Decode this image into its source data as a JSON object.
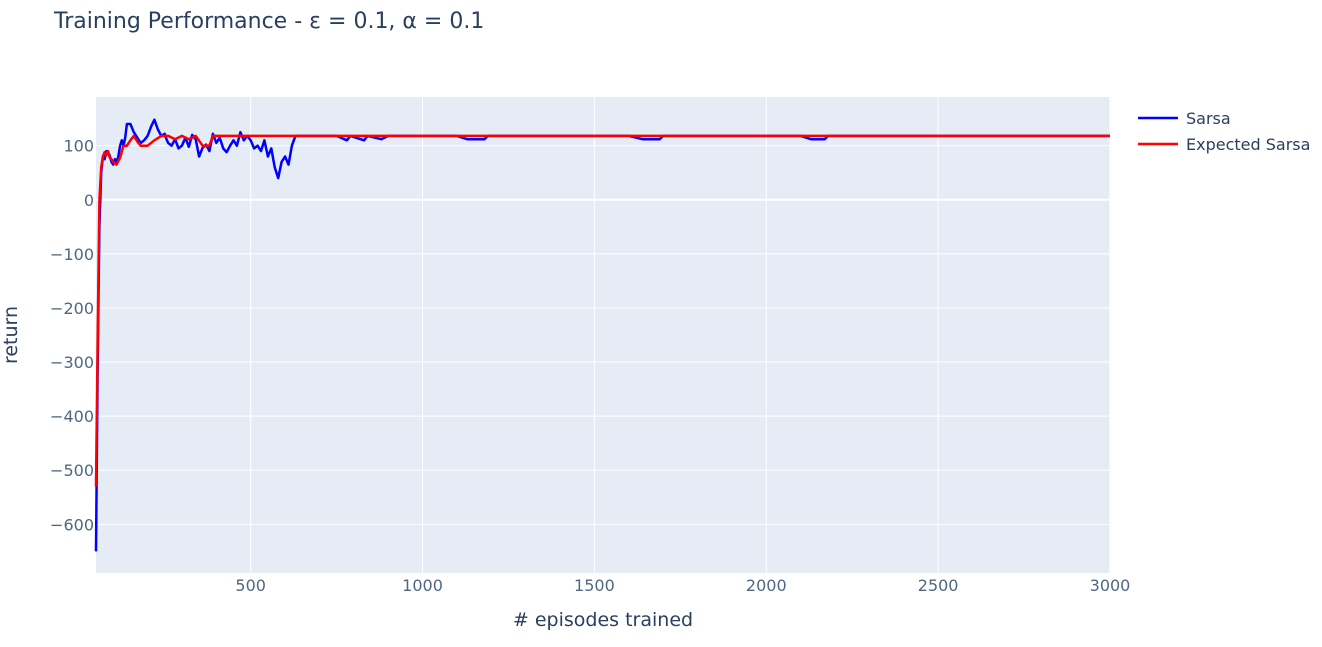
{
  "chart_data": {
    "type": "line",
    "title": "Training Performance - ε = 0.1, α = 0.1",
    "xlabel": "# episodes trained",
    "ylabel": "return",
    "xlim": [
      50,
      3000
    ],
    "ylim": [
      -690,
      190
    ],
    "x_ticks": [
      500,
      1000,
      1500,
      2000,
      2500,
      3000
    ],
    "x_tick_labels": [
      "500",
      "1000",
      "1500",
      "2000",
      "2500",
      "3000"
    ],
    "y_ticks": [
      100,
      0,
      -100,
      -200,
      -300,
      -400,
      -500,
      -600
    ],
    "y_tick_labels": [
      "100",
      "0",
      "−100",
      "−200",
      "−300",
      "−400",
      "−500",
      "−600"
    ],
    "grid": true,
    "plot_background": "#e5ecf6",
    "grid_color": "#ffffff",
    "legend_position": "top-right outside plot",
    "series": [
      {
        "name": "Sarsa",
        "color": "#0000ff",
        "x": [
          50,
          55,
          60,
          65,
          70,
          75,
          80,
          85,
          90,
          95,
          100,
          105,
          110,
          115,
          120,
          125,
          130,
          135,
          140,
          150,
          160,
          170,
          180,
          190,
          200,
          210,
          220,
          230,
          240,
          250,
          255,
          260,
          270,
          280,
          290,
          300,
          310,
          320,
          330,
          340,
          350,
          360,
          370,
          380,
          390,
          400,
          410,
          420,
          430,
          440,
          450,
          460,
          470,
          480,
          490,
          500,
          510,
          520,
          530,
          540,
          550,
          560,
          570,
          580,
          590,
          600,
          610,
          620,
          630,
          640,
          650,
          660,
          670,
          680,
          700,
          750,
          780,
          790,
          830,
          840,
          880,
          900,
          950,
          1000,
          1100,
          1130,
          1180,
          1190,
          1230,
          1240,
          1300,
          1500,
          1600,
          1640,
          1690,
          1700,
          1800,
          2000,
          2100,
          2130,
          2170,
          2180,
          2300,
          2500,
          2700,
          3000
        ],
        "y": [
          -650,
          -300,
          -50,
          50,
          80,
          75,
          90,
          88,
          82,
          70,
          65,
          75,
          70,
          80,
          100,
          110,
          100,
          115,
          140,
          140,
          125,
          115,
          105,
          110,
          118,
          135,
          148,
          130,
          118,
          122,
          112,
          105,
          100,
          112,
          95,
          100,
          115,
          98,
          120,
          112,
          80,
          96,
          102,
          90,
          122,
          105,
          115,
          95,
          88,
          100,
          110,
          100,
          125,
          110,
          118,
          110,
          95,
          100,
          90,
          110,
          80,
          95,
          60,
          40,
          70,
          80,
          65,
          100,
          118,
          118,
          118,
          118,
          118,
          118,
          118,
          118,
          110,
          118,
          110,
          118,
          112,
          118,
          118,
          118,
          118,
          112,
          112,
          118,
          118,
          118,
          118,
          118,
          118,
          112,
          112,
          118,
          118,
          118,
          118,
          112,
          112,
          118,
          118,
          118,
          118,
          118
        ]
      },
      {
        "name": "Expected Sarsa",
        "color": "#ff0000",
        "x": [
          50,
          55,
          60,
          65,
          70,
          75,
          80,
          85,
          90,
          95,
          100,
          110,
          120,
          130,
          140,
          150,
          160,
          170,
          180,
          190,
          200,
          220,
          240,
          260,
          280,
          300,
          320,
          340,
          360,
          380,
          390,
          400,
          420,
          450,
          500,
          600,
          700,
          800,
          900,
          1000,
          1500,
          2000,
          2500,
          3000
        ],
        "y": [
          -530,
          -250,
          0,
          60,
          80,
          88,
          82,
          90,
          78,
          75,
          70,
          65,
          78,
          100,
          100,
          110,
          118,
          108,
          100,
          100,
          100,
          110,
          118,
          118,
          112,
          118,
          112,
          118,
          100,
          100,
          118,
          118,
          118,
          118,
          118,
          118,
          118,
          118,
          118,
          118,
          118,
          118,
          118,
          118
        ]
      }
    ]
  }
}
